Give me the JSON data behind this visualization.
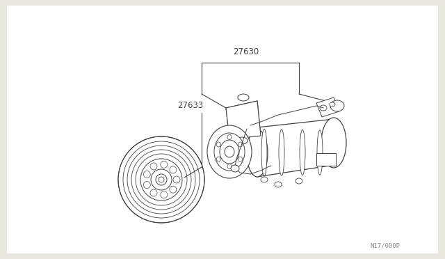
{
  "bg_color": "#ffffff",
  "line_color": "#404040",
  "label_color": "#404040",
  "label_27630": "27630",
  "label_27633": "27633",
  "ref_code": "N17/000P",
  "fig_width": 6.4,
  "fig_height": 3.72,
  "dpi": 100,
  "outer_bg": "#e8e8e0"
}
